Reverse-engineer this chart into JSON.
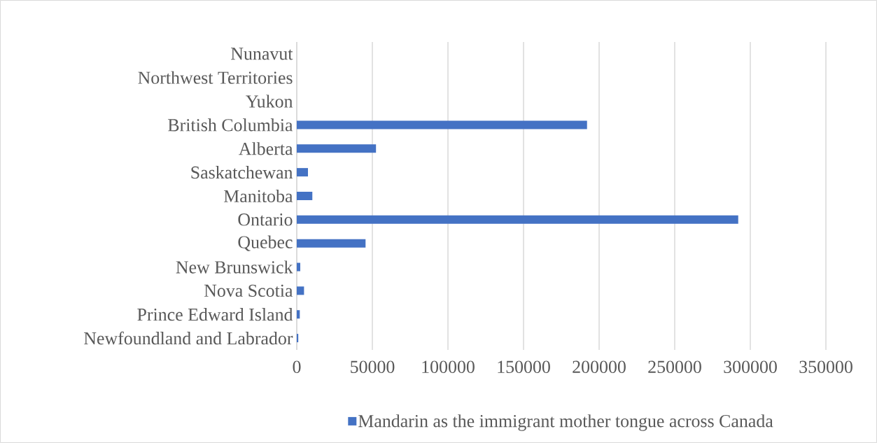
{
  "chart_data": {
    "type": "bar",
    "orientation": "horizontal",
    "categories": [
      "Nunavut",
      "Northwest Territories",
      "Yukon",
      "British Columbia",
      "Alberta",
      "Saskatchewan",
      "Manitoba",
      "Ontario",
      "Quebec",
      "New Brunswick",
      "Nova Scotia",
      "Prince Edward Island",
      "Newfoundland and Labrador"
    ],
    "series": [
      {
        "name": "Mandarin as the immigrant mother tongue across Canada",
        "color": "#4472c4",
        "values": [
          0,
          0,
          0,
          192000,
          52400,
          7400,
          10300,
          292000,
          45500,
          2300,
          4800,
          2000,
          1000
        ]
      }
    ],
    "xlim": [
      0,
      350000
    ],
    "xticks": [
      0,
      50000,
      100000,
      150000,
      200000,
      250000,
      300000,
      350000
    ],
    "grid": "x",
    "legend": "bottom"
  }
}
